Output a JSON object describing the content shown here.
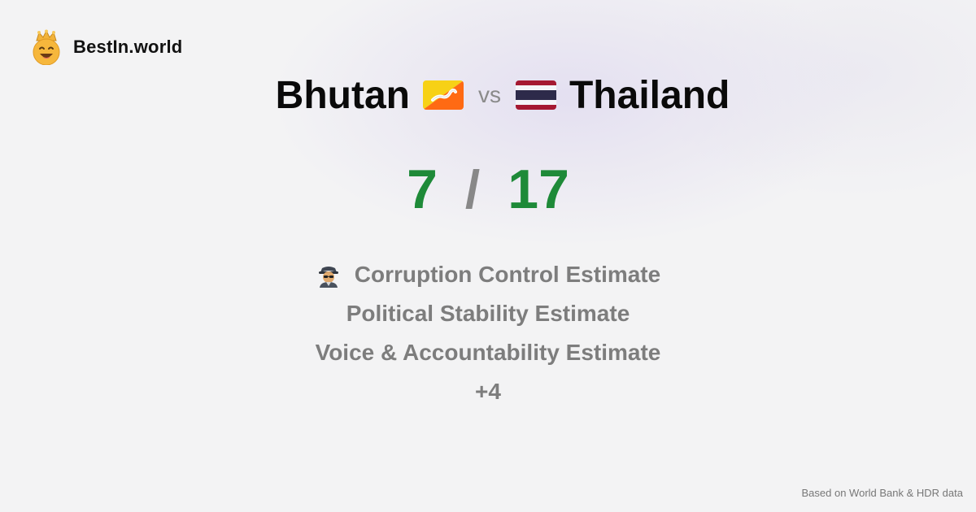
{
  "brand": {
    "name": "BestIn.world",
    "icon": "crowned-smiley-icon"
  },
  "comparison": {
    "country_a": "Bhutan",
    "country_a_flag": "bhutan-flag-icon",
    "vs_label": "vs",
    "country_b": "Thailand",
    "country_b_flag": "thailand-flag-icon"
  },
  "scores": {
    "a": "7",
    "separator": "/",
    "b": "17",
    "color": "#1e8a38"
  },
  "metrics": [
    {
      "label": "Corruption Control Estimate",
      "icon": "detective-icon"
    },
    {
      "label": "Political Stability Estimate"
    },
    {
      "label": "Voice & Accountability Estimate"
    },
    {
      "label": "+4"
    }
  ],
  "footer": {
    "source": "Based on World Bank & HDR data"
  }
}
